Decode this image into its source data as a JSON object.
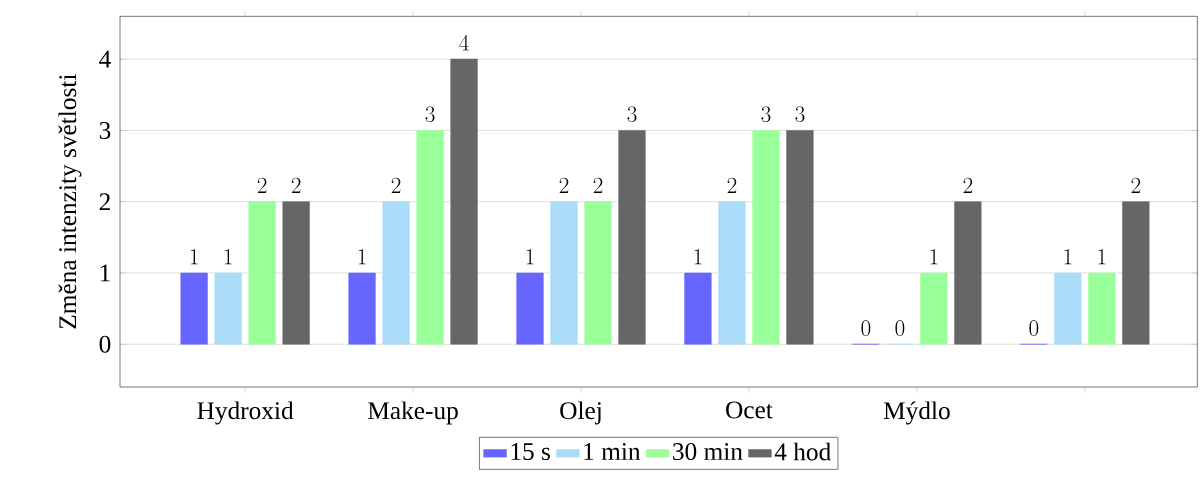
{
  "chart_data": {
    "type": "bar",
    "ylabel": "Změna intenzity světlosti",
    "categories": [
      "Hydroxid",
      "Make-up",
      "Olej",
      "Ocet",
      "Mýdlo",
      null
    ],
    "series": [
      {
        "name": "15 s",
        "color": "#6666ff",
        "values": [
          1,
          1,
          1,
          1,
          0,
          0
        ]
      },
      {
        "name": "1 min",
        "color": "#aadcf7",
        "values": [
          1,
          2,
          2,
          2,
          0,
          1
        ]
      },
      {
        "name": "30 min",
        "color": "#99ff99",
        "values": [
          2,
          3,
          2,
          3,
          1,
          1
        ]
      },
      {
        "name": "4 hod",
        "color": "#666666",
        "values": [
          2,
          4,
          3,
          3,
          2,
          2
        ]
      }
    ],
    "ylim": [
      -0.6,
      4.6
    ],
    "yticks": [
      0,
      1,
      2,
      3,
      4
    ],
    "grid": "y",
    "legend": "bottom",
    "data_labels": true
  }
}
